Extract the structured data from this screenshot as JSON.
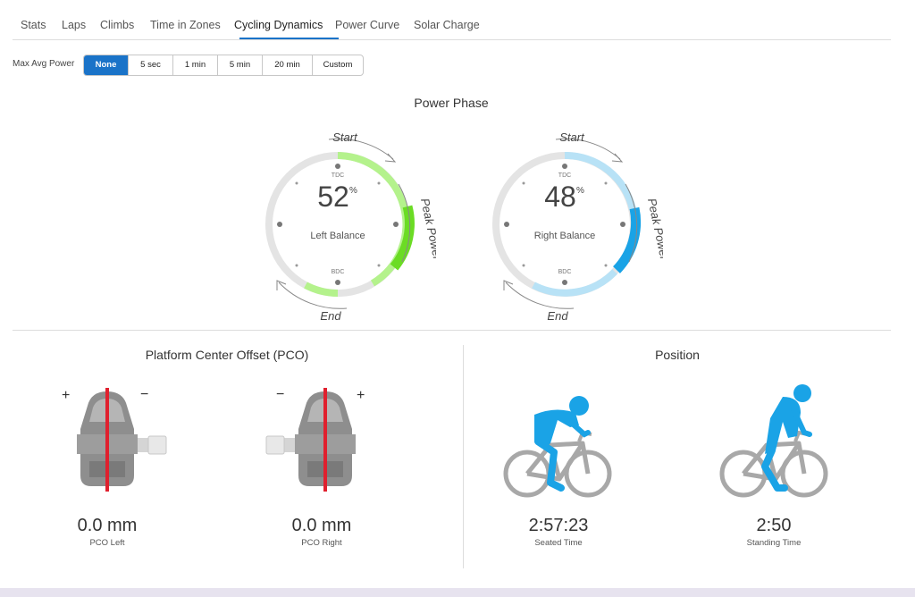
{
  "tabs": [
    {
      "label": "Stats"
    },
    {
      "label": "Laps"
    },
    {
      "label": "Climbs"
    },
    {
      "label": "Time in Zones"
    },
    {
      "label": "Cycling Dynamics",
      "active": true
    },
    {
      "label": "Power Curve"
    },
    {
      "label": "Solar Charge"
    }
  ],
  "max_avg_power": {
    "label": "Max Avg Power",
    "options": [
      "None",
      "5 sec",
      "1 min",
      "5 min",
      "20 min",
      "Custom"
    ],
    "selected": "None"
  },
  "power_phase": {
    "title": "Power Phase",
    "left": {
      "value": "52",
      "unit": "%",
      "label": "Left Balance",
      "color_light": "#b4f28c",
      "color_peak": "#6bdc24"
    },
    "right": {
      "value": "48",
      "unit": "%",
      "label": "Right Balance",
      "color_light": "#b8e2f6",
      "color_peak": "#1aa3e6"
    },
    "labels": {
      "start": "Start",
      "end": "End",
      "peak": "Peak Power",
      "tdc": "TDC",
      "bdc": "BDC"
    }
  },
  "pco": {
    "title": "Platform Center Offset (PCO)",
    "left": {
      "value": "0.0 mm",
      "label": "PCO Left",
      "plus": "+",
      "minus": "−"
    },
    "right": {
      "value": "0.0 mm",
      "label": "PCO Right",
      "plus": "+",
      "minus": "−"
    }
  },
  "position": {
    "title": "Position",
    "seated": {
      "value": "2:57:23",
      "label": "Seated Time"
    },
    "standing": {
      "value": "2:50",
      "label": "Standing Time"
    }
  },
  "colors": {
    "accent": "#1a73c8",
    "rider": "#1aa3e6",
    "bike": "#a8a8a8",
    "pedal": "#8e8e8e",
    "pco_line": "#e0202e"
  }
}
